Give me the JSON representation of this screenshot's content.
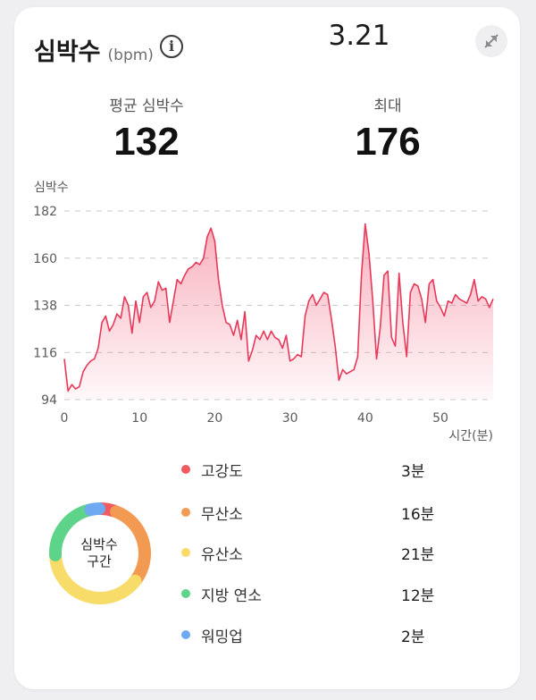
{
  "header": {
    "title": "심박수",
    "unit": "(bpm)",
    "date": "3.21"
  },
  "stats": {
    "avg_label": "평균 심박수",
    "avg_value": "132",
    "max_label": "최대",
    "max_value": "176"
  },
  "chart_data": {
    "type": "area",
    "ylabel": "심박수",
    "xlabel": "시간(분)",
    "xlim": [
      0,
      57
    ],
    "ylim": [
      94,
      182
    ],
    "xticks": [
      0,
      10,
      20,
      30,
      40,
      50
    ],
    "yticks": [
      94,
      116,
      138,
      160,
      182
    ],
    "grid": "horizontal-dashed",
    "color": "#e8395a",
    "x": [
      0,
      0.5,
      1,
      1.5,
      2,
      2.5,
      3,
      3.5,
      4,
      4.5,
      5,
      5.5,
      6,
      6.5,
      7,
      7.5,
      8,
      8.5,
      9,
      9.5,
      10,
      10.5,
      11,
      11.5,
      12,
      12.5,
      13,
      13.5,
      14,
      14.5,
      15,
      15.5,
      16,
      16.5,
      17,
      17.5,
      18,
      18.5,
      19,
      19.5,
      20,
      20.5,
      21,
      21.5,
      22,
      22.5,
      23,
      23.5,
      24,
      24.5,
      25,
      25.5,
      26,
      26.5,
      27,
      27.5,
      28,
      28.5,
      29,
      29.5,
      30,
      30.5,
      31,
      31.5,
      32,
      32.5,
      33,
      33.5,
      34,
      34.5,
      35,
      35.5,
      36,
      36.5,
      37,
      37.5,
      38,
      38.5,
      39,
      39.5,
      40,
      40.5,
      41,
      41.5,
      42,
      42.5,
      43,
      43.5,
      44,
      44.5,
      45,
      45.5,
      46,
      46.5,
      47,
      47.5,
      48,
      48.5,
      49,
      49.5,
      50,
      50.5,
      51,
      51.5,
      52,
      52.5,
      53,
      53.5,
      54,
      54.5,
      55,
      55.5,
      56,
      56.5,
      57
    ],
    "y": [
      113,
      98,
      101,
      99,
      100,
      107,
      110,
      112,
      113,
      118,
      130,
      133,
      126,
      129,
      134,
      132,
      142,
      138,
      125,
      140,
      130,
      142,
      144,
      137,
      140,
      149,
      145,
      146,
      130,
      140,
      150,
      148,
      152,
      155,
      156,
      158,
      157,
      160,
      170,
      174,
      168,
      150,
      138,
      130,
      129,
      124,
      131,
      122,
      135,
      112,
      117,
      124,
      122,
      126,
      122,
      126,
      123,
      122,
      118,
      124,
      112,
      113,
      115,
      114,
      133,
      140,
      143,
      138,
      141,
      144,
      143,
      132,
      119,
      103,
      108,
      106,
      107,
      108,
      114,
      152,
      176,
      162,
      140,
      113,
      128,
      152,
      154,
      123,
      119,
      153,
      130,
      114,
      144,
      148,
      147,
      141,
      130,
      148,
      150,
      140,
      137,
      133,
      140,
      139,
      143,
      141,
      140,
      139,
      143,
      150,
      140,
      142,
      141,
      137,
      141
    ]
  },
  "donut": {
    "center_line1": "심박수",
    "center_line2": "구간"
  },
  "zones": [
    {
      "label": "고강도",
      "value": "3분",
      "minutes": 3,
      "color": "#ef5b60"
    },
    {
      "label": "무산소",
      "value": "16분",
      "minutes": 16,
      "color": "#f39a52"
    },
    {
      "label": "유산소",
      "value": "21분",
      "minutes": 21,
      "color": "#f8dc6a"
    },
    {
      "label": "지방 연소",
      "value": "12분",
      "minutes": 12,
      "color": "#5ed38a"
    },
    {
      "label": "워밍업",
      "value": "2분",
      "minutes": 2,
      "color": "#6ea9f2"
    }
  ]
}
